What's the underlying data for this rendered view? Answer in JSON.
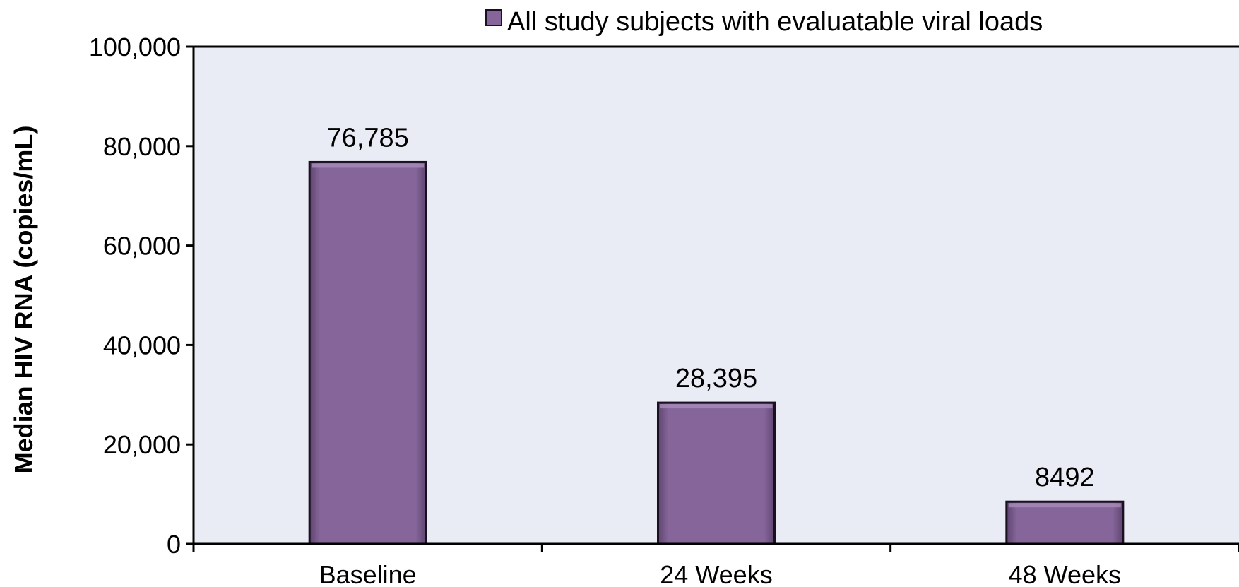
{
  "chart_data": {
    "type": "bar",
    "categories": [
      "Baseline",
      "24 Weeks",
      "48 Weeks"
    ],
    "series": [
      {
        "name": "All study subjects with evaluatable viral loads",
        "values": [
          76785,
          28395,
          8492
        ]
      }
    ],
    "data_labels": [
      "76,785",
      "28,395",
      "8492"
    ],
    "title": "",
    "xlabel": "",
    "ylabel": "Median HIV RNA (copies/mL)",
    "ylim": [
      0,
      100000
    ],
    "yticks": [
      0,
      20000,
      40000,
      60000,
      80000,
      100000
    ],
    "ytick_labels": [
      "0",
      "20,000",
      "40,000",
      "60,000",
      "80,000",
      "100,000"
    ],
    "grid": false,
    "legend_position": "top",
    "colors": {
      "bar_fill": "#86669A",
      "bar_stroke": "#1a1020",
      "plot_background": "#E9ECF4",
      "axis": "#000000"
    }
  }
}
